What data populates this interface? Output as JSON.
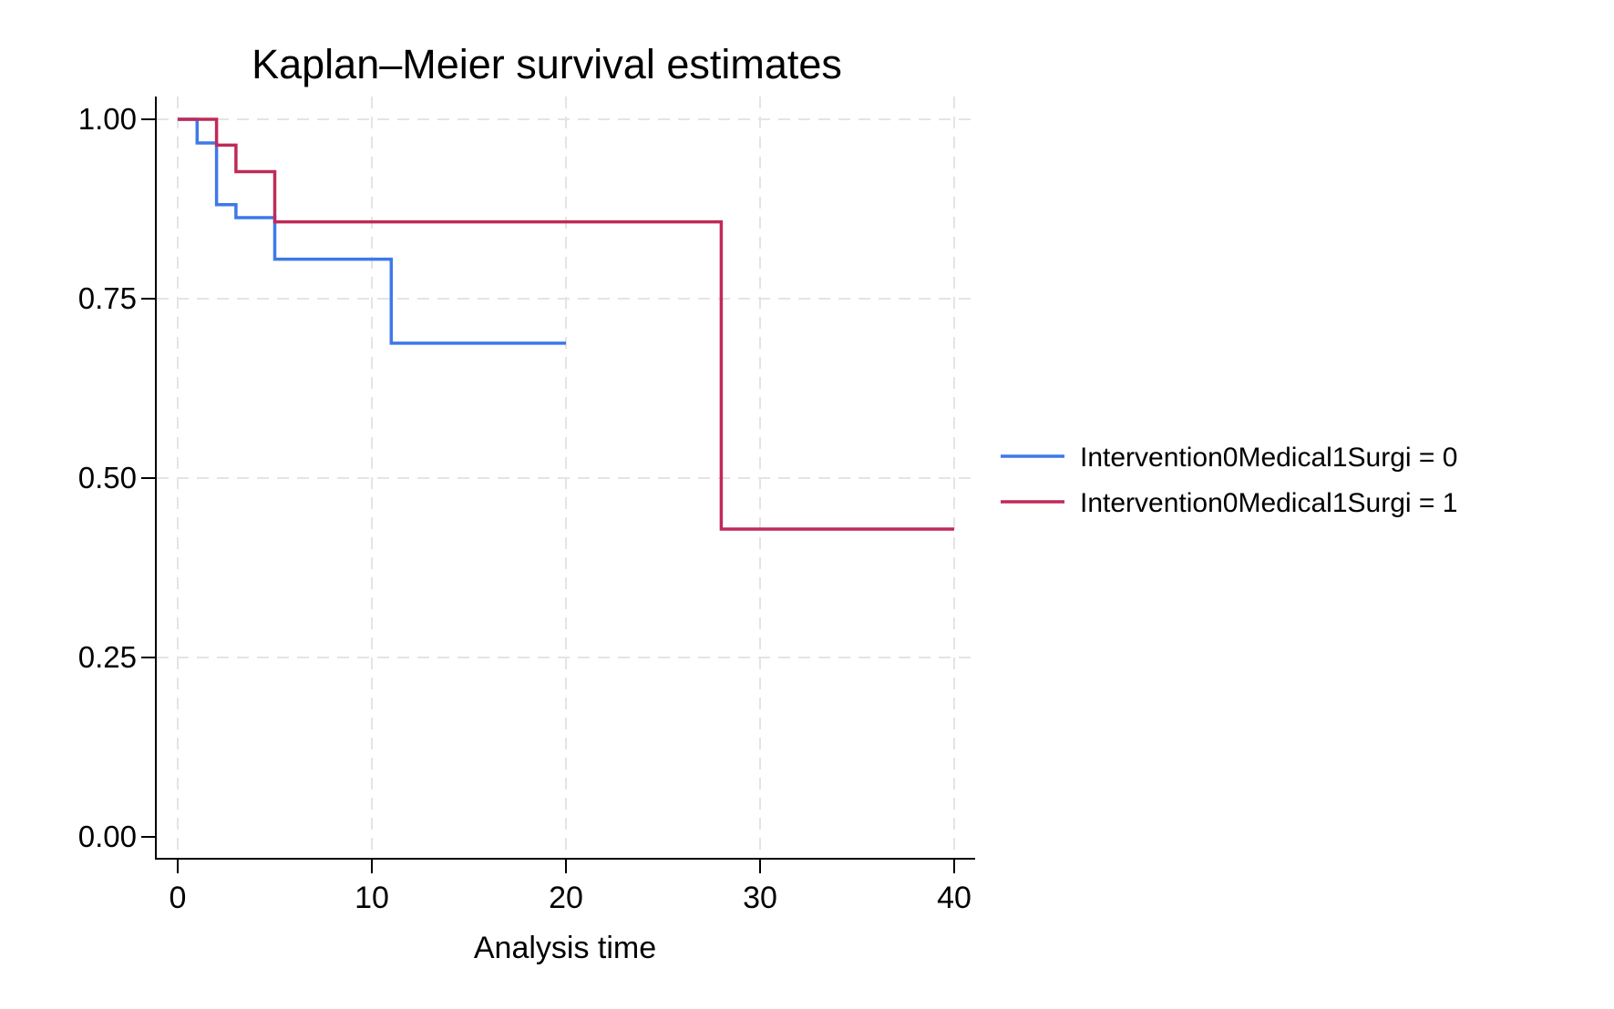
{
  "chart_data": {
    "type": "line",
    "subtype": "kaplan-meier-step",
    "title": "Kaplan–Meier survival estimates",
    "xlabel": "Analysis time",
    "ylabel": "",
    "xlim": [
      0,
      40
    ],
    "ylim": [
      0.0,
      1.0
    ],
    "grid": "dashed gridlines at x ticks 0-40 and y ticks 0.25-1.00 (none at y=0.00)",
    "legend_position": "right-outside-middle",
    "x_ticks": [
      {
        "label": "0",
        "value": 0
      },
      {
        "label": "10",
        "value": 10
      },
      {
        "label": "20",
        "value": 20
      },
      {
        "label": "30",
        "value": 30
      },
      {
        "label": "40",
        "value": 40
      }
    ],
    "y_ticks": [
      {
        "label": "1.00",
        "value": 1.0,
        "gridline": true
      },
      {
        "label": "0.75",
        "value": 0.75,
        "gridline": true
      },
      {
        "label": "0.50",
        "value": 0.5,
        "gridline": true
      },
      {
        "label": "0.25",
        "value": 0.25,
        "gridline": true
      },
      {
        "label": "0.00",
        "value": 0.0,
        "gridline": false
      }
    ],
    "series": [
      {
        "name": "Intervention0Medical1Surgi = 0",
        "color": "#3d79e8",
        "start": [
          0,
          1.0
        ],
        "steps": [
          [
            1,
            0.967
          ],
          [
            2,
            0.881
          ],
          [
            3,
            0.863
          ],
          [
            5,
            0.805
          ],
          [
            11,
            0.688
          ]
        ],
        "end_time": 20
      },
      {
        "name": "Intervention0Medical1Surgi = 1",
        "color": "#c02a58",
        "start": [
          0,
          1.0
        ],
        "steps": [
          [
            2,
            0.964
          ],
          [
            3,
            0.927
          ],
          [
            5,
            0.857
          ],
          [
            28,
            0.429
          ]
        ],
        "end_time": 40
      }
    ],
    "grid_color": "#e4e4e4",
    "axis_color": "#000000"
  }
}
